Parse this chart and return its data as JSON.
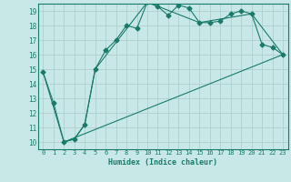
{
  "xlabel": "Humidex (Indice chaleur)",
  "background_color": "#c8e8e8",
  "grid_color": "#b0d0d0",
  "line_color": "#1a7a6a",
  "xlim": [
    -0.5,
    23.5
  ],
  "ylim": [
    9.5,
    19.5
  ],
  "yticks": [
    10,
    11,
    12,
    13,
    14,
    15,
    16,
    17,
    18,
    19
  ],
  "xticks": [
    0,
    1,
    2,
    3,
    4,
    5,
    6,
    7,
    8,
    9,
    10,
    11,
    12,
    13,
    14,
    15,
    16,
    17,
    18,
    19,
    20,
    21,
    22,
    23
  ],
  "series1_x": [
    0,
    1,
    2,
    3,
    4,
    5,
    6,
    7,
    8,
    9,
    10,
    11,
    12,
    13,
    14,
    15,
    16,
    17,
    18,
    19,
    20,
    21,
    22,
    23
  ],
  "series1_y": [
    14.8,
    12.7,
    10.0,
    10.2,
    11.2,
    15.0,
    16.3,
    17.0,
    18.0,
    17.8,
    19.6,
    19.3,
    18.7,
    19.4,
    19.2,
    18.2,
    18.2,
    18.3,
    18.8,
    19.0,
    18.8,
    16.7,
    16.5,
    16.0
  ],
  "series2_x": [
    0,
    2,
    3,
    4,
    5,
    10,
    15,
    20,
    23
  ],
  "series2_y": [
    14.8,
    10.0,
    10.2,
    11.2,
    15.0,
    19.6,
    18.2,
    18.8,
    16.0
  ],
  "series3_x": [
    2,
    23
  ],
  "series3_y": [
    10.0,
    16.0
  ]
}
